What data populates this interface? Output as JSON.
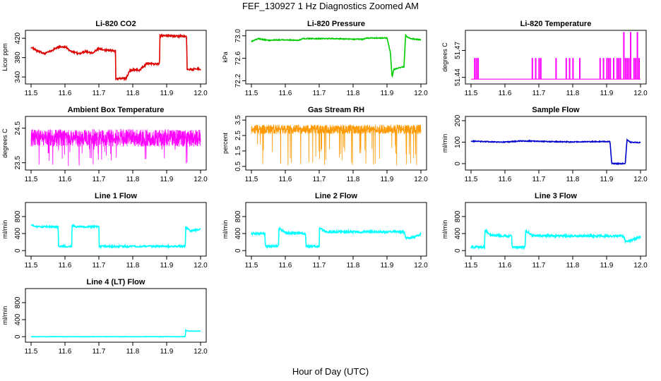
{
  "page_title": "FEF_130927  1 Hz Diagnostics Zoomed AM",
  "xlabel": "Hour of Day (UTC)",
  "chart_data": [
    {
      "type": "line",
      "title": "Li-820 CO2",
      "ylabel": "Licor ppm",
      "color": "#dd0000",
      "xlim": [
        11.5,
        12.0
      ],
      "ylim": [
        330,
        432
      ],
      "xticks": [
        "11.5",
        "11.6",
        "11.7",
        "11.8",
        "11.9",
        "12.0"
      ],
      "yticks": [
        "340",
        "380",
        "420"
      ],
      "ytick_values": [
        340,
        380,
        420
      ],
      "noise": 2,
      "x": [
        11.5,
        11.52,
        11.54,
        11.56,
        11.58,
        11.6,
        11.62,
        11.64,
        11.66,
        11.68,
        11.7,
        11.72,
        11.749,
        11.75,
        11.76,
        11.78,
        11.789,
        11.79,
        11.8,
        11.82,
        11.839,
        11.84,
        11.86,
        11.879,
        11.88,
        11.9,
        11.94,
        11.959,
        11.96,
        11.98,
        12.0
      ],
      "y": [
        401,
        393,
        389,
        394,
        402,
        403,
        392,
        388,
        393,
        390,
        398,
        396,
        394,
        336,
        337,
        337,
        350,
        352,
        355,
        354,
        366,
        368,
        367,
        367,
        425,
        425,
        424,
        424,
        356,
        356,
        356
      ]
    },
    {
      "type": "line",
      "title": "Li-820 Pressure",
      "ylabel": "kPa",
      "color": "#00cc00",
      "xlim": [
        11.5,
        12.0
      ],
      "ylim": [
        72.18,
        73.06
      ],
      "xticks": [
        "11.5",
        "11.6",
        "11.7",
        "11.8",
        "11.9",
        "12.0"
      ],
      "yticks": [
        "72.2",
        "72.6",
        "73.0"
      ],
      "ytick_values": [
        72.2,
        72.6,
        73.0
      ],
      "noise": 0.008,
      "x": [
        11.5,
        11.52,
        11.55,
        11.6,
        11.64,
        11.65,
        11.7,
        11.75,
        11.8,
        11.83,
        11.84,
        11.88,
        11.9,
        11.91,
        11.915,
        11.92,
        11.93,
        11.95,
        11.955,
        11.96,
        11.97,
        12.0
      ],
      "y": [
        72.9,
        72.95,
        72.92,
        72.93,
        72.92,
        72.95,
        72.95,
        72.95,
        72.94,
        72.94,
        72.96,
        72.96,
        72.96,
        72.7,
        72.26,
        72.4,
        72.42,
        72.45,
        73.02,
        72.98,
        72.95,
        72.93
      ]
    },
    {
      "type": "spikes",
      "title": "Li-820 Temperature",
      "ylabel": "degrees C",
      "color": "#ff00ff",
      "xlim": [
        11.5,
        12.0
      ],
      "ylim": [
        51.435,
        51.49
      ],
      "xticks": [
        "11.5",
        "11.6",
        "11.7",
        "11.8",
        "11.9",
        "12.0"
      ],
      "yticks": [
        "51.44",
        "51.47"
      ],
      "ytick_values": [
        51.44,
        51.47
      ],
      "base": 51.438,
      "mid": 51.461,
      "top": 51.49,
      "spike_x": [
        11.51,
        11.515,
        11.52,
        11.68,
        11.69,
        11.7,
        11.705,
        11.75,
        11.78,
        11.79,
        11.8,
        11.82,
        11.88,
        11.89,
        11.9,
        11.905,
        11.91,
        11.92,
        11.93,
        11.935,
        11.94,
        11.95,
        11.955,
        11.96,
        11.965,
        11.97,
        11.98,
        11.985,
        11.99,
        11.995
      ],
      "tall_x": [
        11.95,
        11.97,
        11.99
      ]
    },
    {
      "type": "noise",
      "title": "Ambient Box Temperature",
      "ylabel": "degrees C",
      "color": "#ff00ff",
      "xlim": [
        11.5,
        12.0
      ],
      "ylim": [
        23.35,
        24.78
      ],
      "xticks": [
        "11.5",
        "11.6",
        "11.7",
        "11.8",
        "11.9",
        "12.0"
      ],
      "yticks": [
        "23.5",
        "24.5"
      ],
      "ytick_values": [
        23.5,
        24.5
      ],
      "center": 24.22,
      "amp": 0.25,
      "dip_min": 23.4
    },
    {
      "type": "noise",
      "title": "Gas Stream RH",
      "ylabel": "percent",
      "color": "#ff9900",
      "xlim": [
        11.5,
        12.0
      ],
      "ylim": [
        0.4,
        3.6
      ],
      "xticks": [
        "11.5",
        "11.6",
        "11.7",
        "11.8",
        "11.9",
        "12.0"
      ],
      "yticks": [
        "0.5",
        "1.5",
        "2.5",
        "3.5"
      ],
      "ytick_values": [
        0.5,
        1.5,
        2.5,
        3.5
      ],
      "center": 2.9,
      "amp": 0.3,
      "dip_min": 0.55
    },
    {
      "type": "line",
      "title": "Sample Flow",
      "ylabel": "ml/min",
      "color": "#0000cc",
      "xlim": [
        11.5,
        12.0
      ],
      "ylim": [
        -20,
        210
      ],
      "xticks": [
        "11.5",
        "11.6",
        "11.7",
        "11.8",
        "11.9",
        "12.0"
      ],
      "yticks": [
        "0",
        "100",
        "200"
      ],
      "ytick_values": [
        0,
        100,
        200
      ],
      "noise": 2,
      "x": [
        11.5,
        11.55,
        11.6,
        11.65,
        11.7,
        11.75,
        11.8,
        11.85,
        11.9,
        11.91,
        11.915,
        11.94,
        11.955,
        11.96,
        11.97,
        12.0
      ],
      "y": [
        105,
        102,
        100,
        106,
        104,
        102,
        101,
        102,
        103,
        103,
        0,
        0,
        0,
        110,
        100,
        98
      ]
    },
    {
      "type": "line",
      "title": "Line 1 Flow",
      "ylabel": "ml/min",
      "color": "#00ffff",
      "xlim": [
        11.5,
        12.0
      ],
      "ylim": [
        -80,
        1080
      ],
      "xticks": [
        "11.5",
        "11.6",
        "11.7",
        "11.8",
        "11.9",
        "12.0"
      ],
      "yticks": [
        "0",
        "400",
        "800"
      ],
      "ytick_values": [
        0,
        400,
        800
      ],
      "noise": 20,
      "x": [
        11.5,
        11.51,
        11.58,
        11.581,
        11.62,
        11.621,
        11.63,
        11.7,
        11.701,
        11.9,
        11.955,
        11.956,
        11.97,
        12.0
      ],
      "y": [
        620,
        560,
        560,
        100,
        100,
        600,
        560,
        560,
        100,
        100,
        100,
        560,
        460,
        500
      ]
    },
    {
      "type": "line",
      "title": "Line 2 Flow",
      "ylabel": "ml/min",
      "color": "#00ffff",
      "xlim": [
        11.5,
        12.0
      ],
      "ylim": [
        -80,
        1080
      ],
      "xticks": [
        "11.5",
        "11.6",
        "11.7",
        "11.8",
        "11.9",
        "12.0"
      ],
      "yticks": [
        "0",
        "400",
        "800"
      ],
      "ytick_values": [
        0,
        400,
        800
      ],
      "noise": 25,
      "x": [
        11.5,
        11.54,
        11.541,
        11.58,
        11.581,
        11.6,
        11.66,
        11.661,
        11.7,
        11.701,
        11.72,
        11.95,
        11.955,
        11.97,
        12.0
      ],
      "y": [
        400,
        400,
        100,
        100,
        520,
        420,
        400,
        100,
        100,
        540,
        440,
        440,
        300,
        300,
        380
      ]
    },
    {
      "type": "line",
      "title": "Line 3 Flow",
      "ylabel": "ml/min",
      "color": "#00ffff",
      "xlim": [
        11.5,
        12.0
      ],
      "ylim": [
        -80,
        1080
      ],
      "xticks": [
        "11.5",
        "11.6",
        "11.7",
        "11.8",
        "11.9",
        "12.0"
      ],
      "yticks": [
        "0",
        "400",
        "800"
      ],
      "ytick_values": [
        0,
        400,
        800
      ],
      "noise": 25,
      "x": [
        11.5,
        11.54,
        11.541,
        11.56,
        11.62,
        11.621,
        11.66,
        11.661,
        11.68,
        11.95,
        11.955,
        11.97,
        12.0
      ],
      "y": [
        80,
        80,
        480,
        360,
        340,
        80,
        80,
        480,
        350,
        340,
        220,
        230,
        330
      ]
    },
    {
      "type": "line",
      "title": "Line 4 (LT) Flow",
      "ylabel": "ml/min",
      "color": "#00ffff",
      "xlim": [
        11.5,
        12.0
      ],
      "ylim": [
        -80,
        1080
      ],
      "xticks": [
        "11.5",
        "11.6",
        "11.7",
        "11.8",
        "11.9",
        "12.0"
      ],
      "yticks": [
        "0",
        "400",
        "800"
      ],
      "ytick_values": [
        0,
        400,
        800
      ],
      "noise": 4,
      "x": [
        11.5,
        11.955,
        11.956,
        11.96,
        11.97,
        12.0
      ],
      "y": [
        0,
        0,
        160,
        140,
        130,
        130
      ]
    }
  ]
}
